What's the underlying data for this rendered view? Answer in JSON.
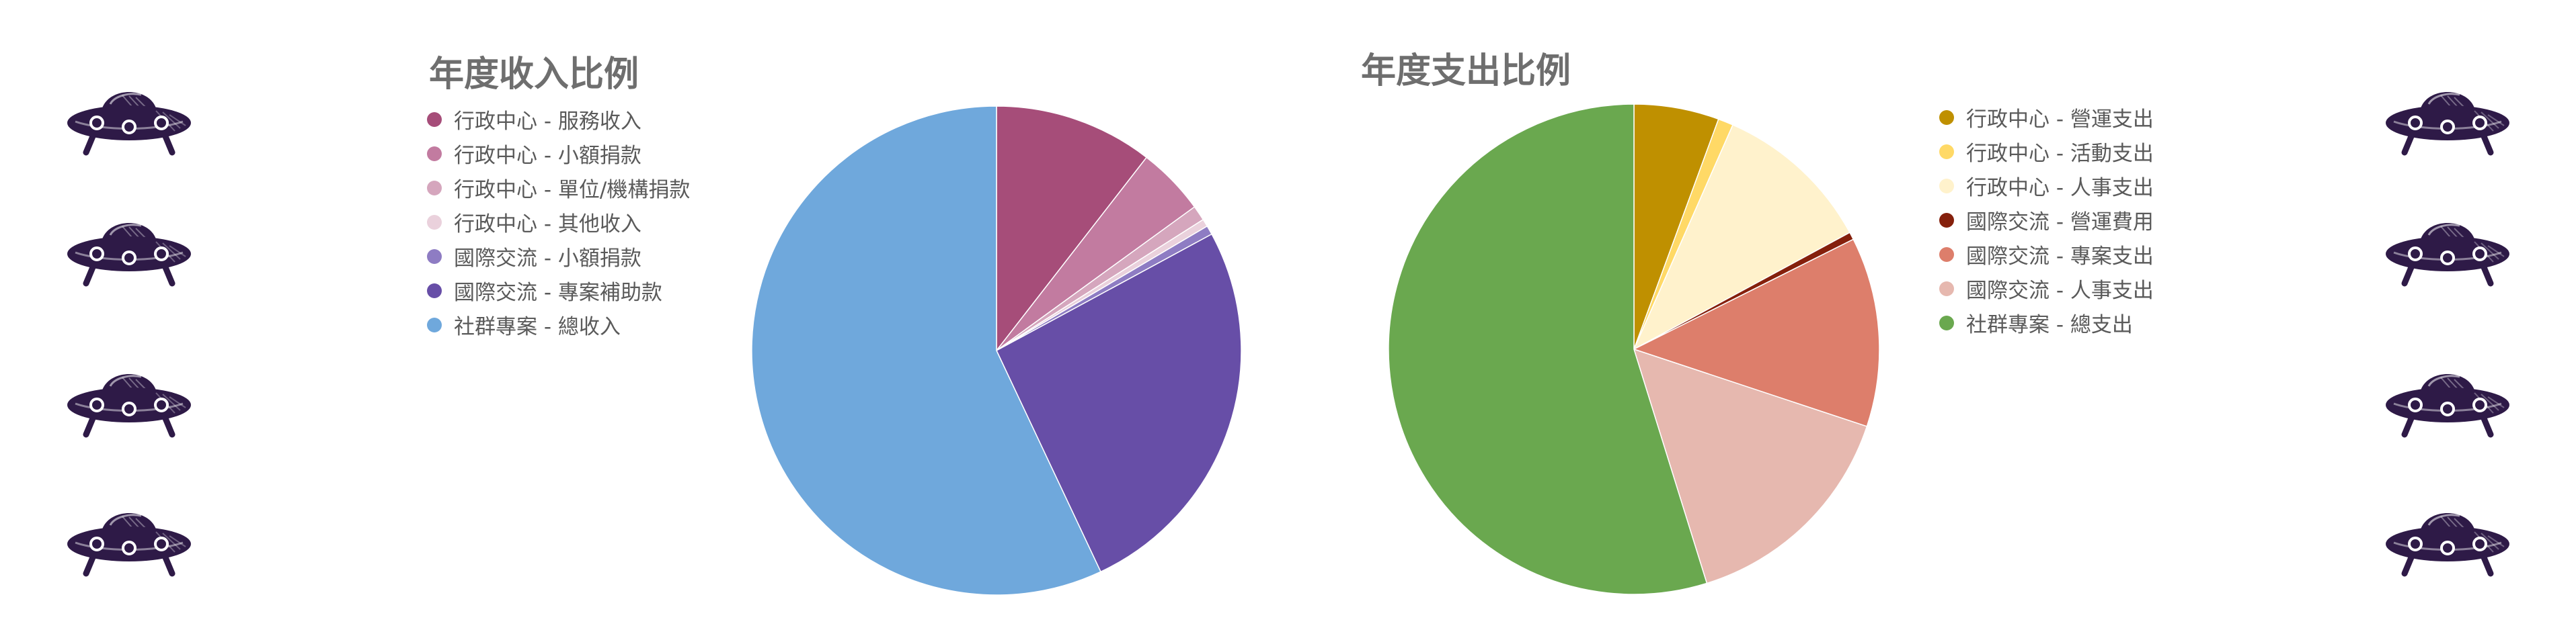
{
  "chart_data": [
    {
      "type": "pie",
      "title": "年度收入比例",
      "legend_position": "left",
      "slices": [
        {
          "label": "行政中心 - 服務收入",
          "value": 10.5,
          "color": "#a64d79"
        },
        {
          "label": "行政中心 - 小額捐款",
          "value": 4.5,
          "color": "#c27ba0"
        },
        {
          "label": "行政中心 - 單位/機構捐款",
          "value": 1.0,
          "color": "#d5a6bd"
        },
        {
          "label": "行政中心 - 其他收入",
          "value": 0.5,
          "color": "#ead1dc"
        },
        {
          "label": "國際交流 - 小額捐款",
          "value": 0.6,
          "color": "#8e7cc3"
        },
        {
          "label": "國際交流 - 專案補助款",
          "value": 25.9,
          "color": "#674ea7"
        },
        {
          "label": "社群專案 - 總收入",
          "value": 57.0,
          "color": "#6fa8dc"
        }
      ]
    },
    {
      "type": "pie",
      "title": "年度支出比例",
      "legend_position": "right",
      "slices": [
        {
          "label": "行政中心 - 營運支出",
          "value": 5.6,
          "color": "#bf9000"
        },
        {
          "label": "行政中心 - 活動支出",
          "value": 1.0,
          "color": "#ffd966"
        },
        {
          "label": "行政中心 - 人事支出",
          "value": 10.5,
          "color": "#fff2cc"
        },
        {
          "label": "國際交流 - 營運費用",
          "value": 0.5,
          "color": "#85200c"
        },
        {
          "label": "國際交流 - 專案支出",
          "value": 12.5,
          "color": "#dd7e6b"
        },
        {
          "label": "國際交流 - 人事支出",
          "value": 15.1,
          "color": "#e6b8af"
        },
        {
          "label": "社群專案 - 總支出",
          "value": 54.8,
          "color": "#6aa84f"
        }
      ]
    }
  ],
  "decor": {
    "icon": "ufo-icon",
    "color": "#2e1a47"
  }
}
